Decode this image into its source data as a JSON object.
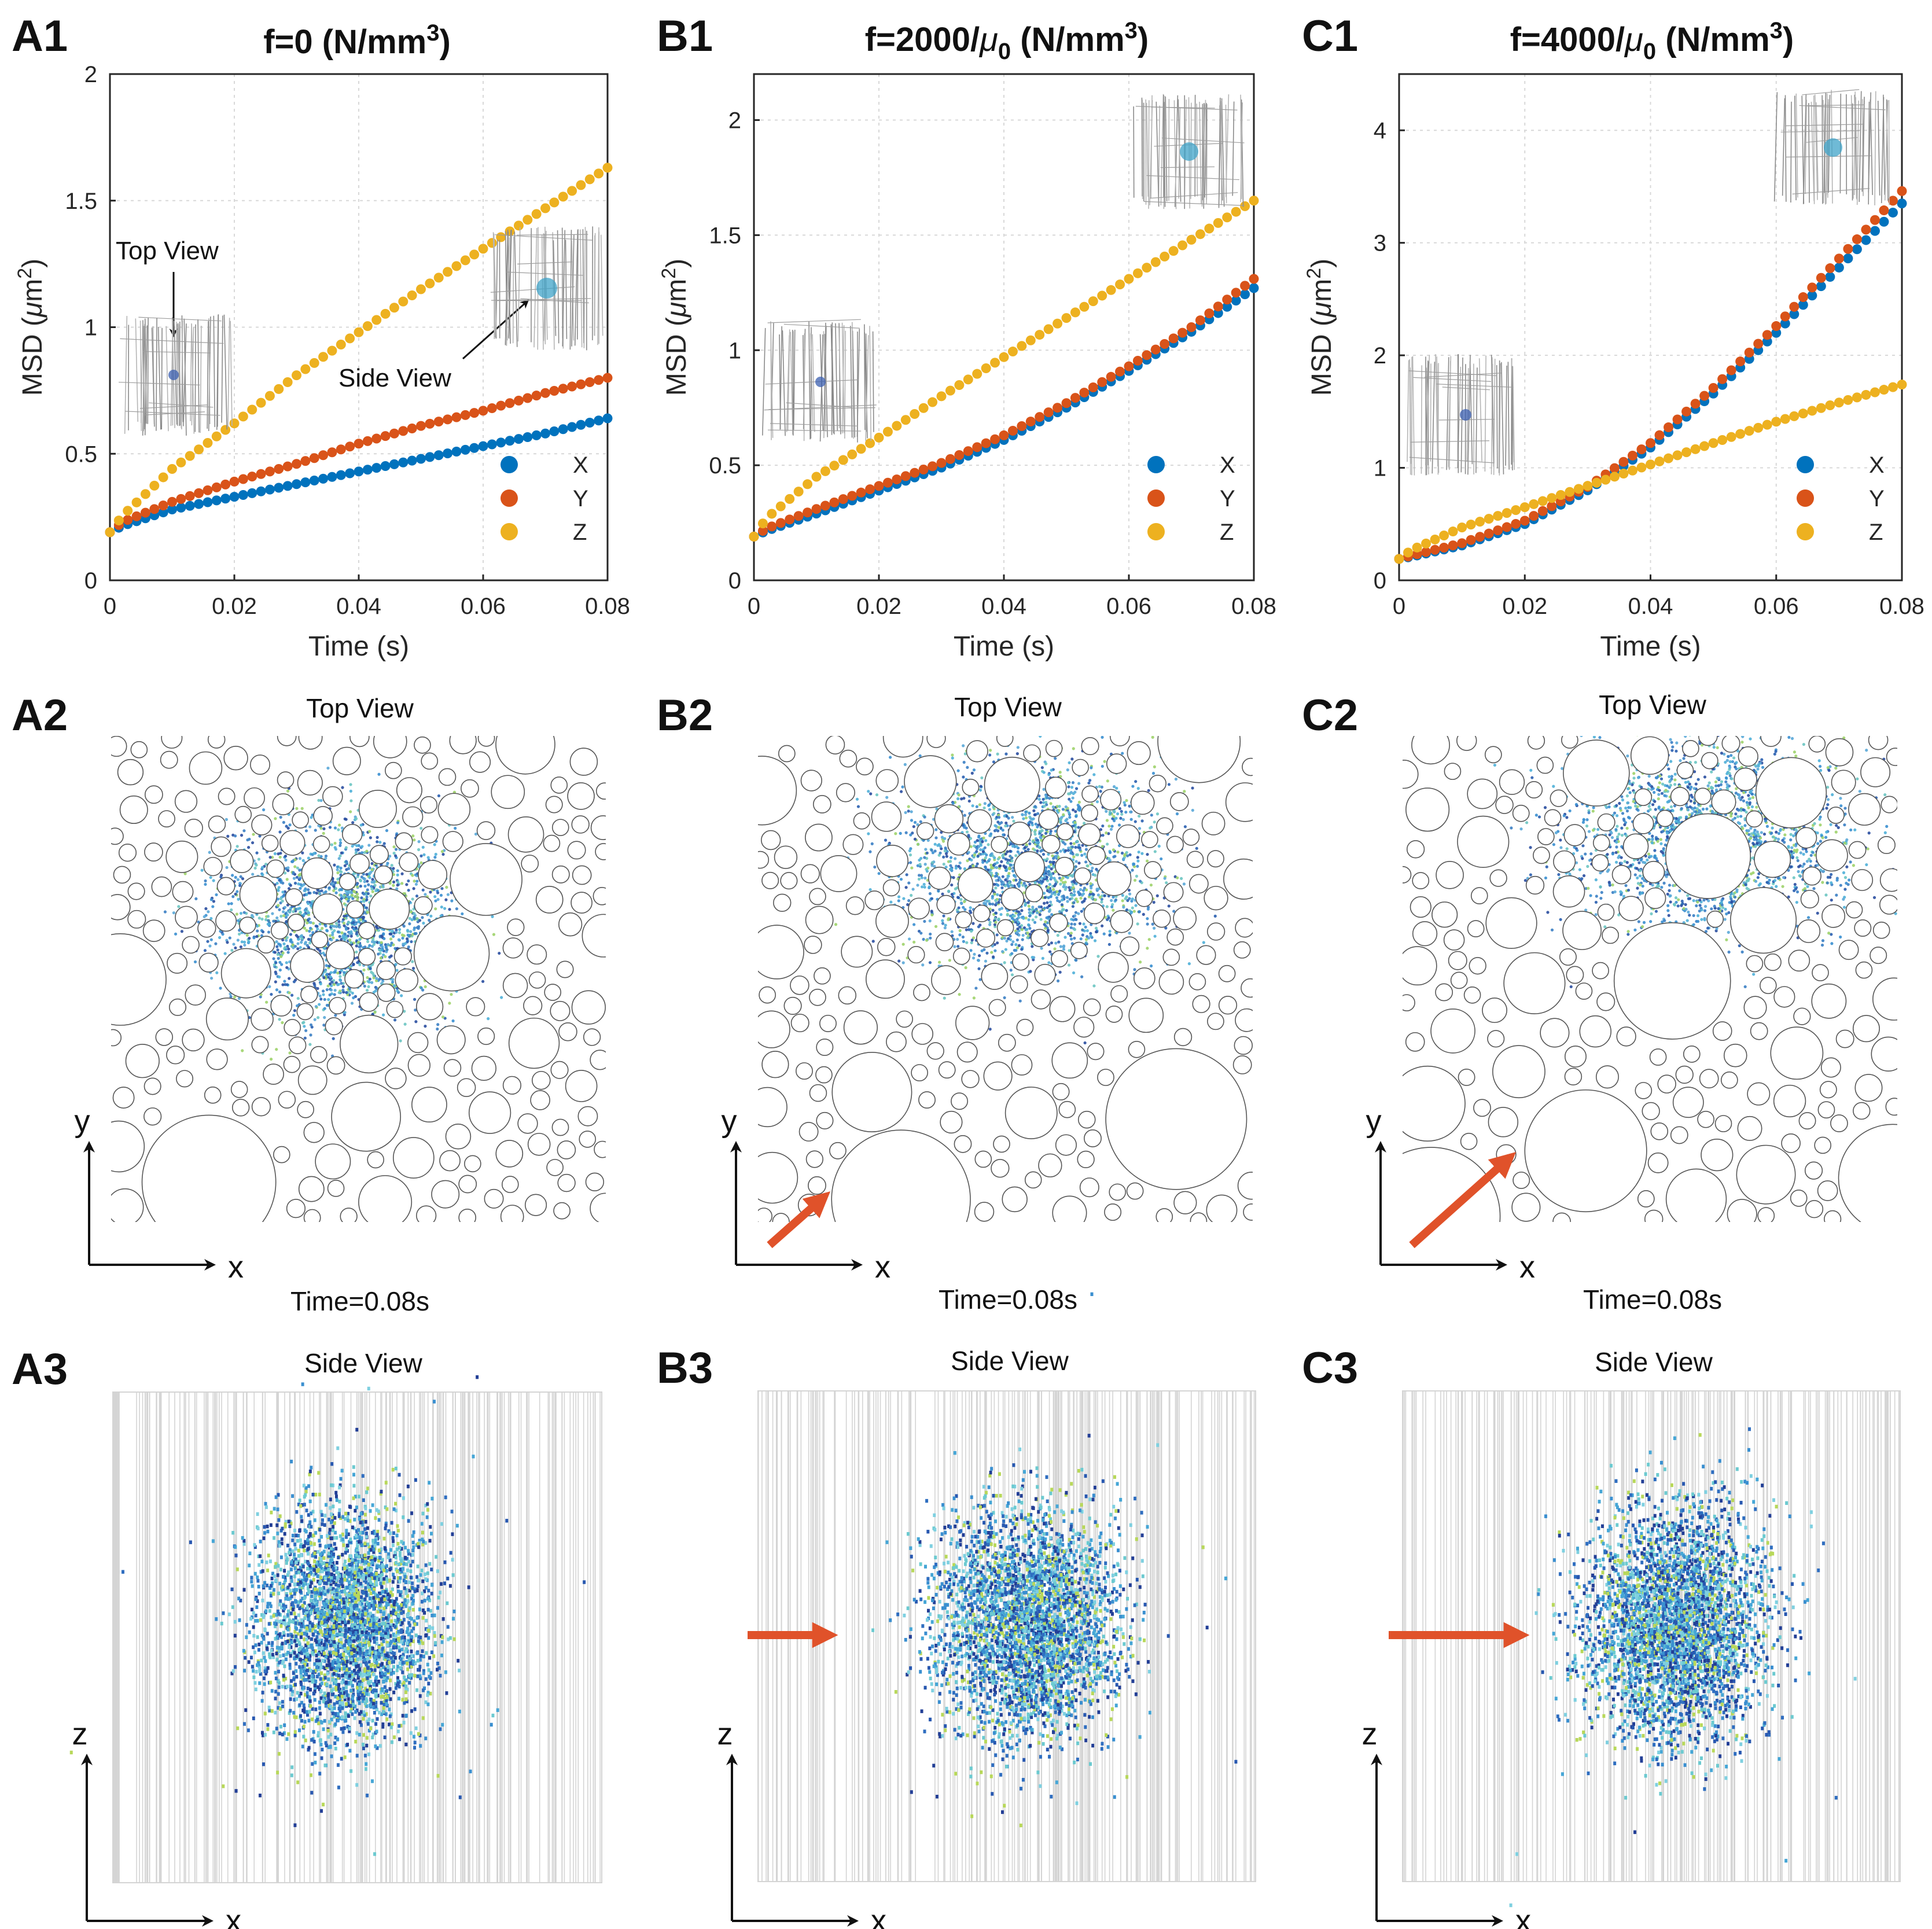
{
  "colors": {
    "x": "#0072BD",
    "y": "#D95319",
    "z": "#EDB120",
    "arrow": "#E0522A",
    "grid": "#d8d8d8",
    "cylinder": "#d4d4d4"
  },
  "row1": {
    "xlabel": "Time (s)",
    "ylabel_prefix": "MSD (",
    "ylabel_mu": "μ",
    "ylabel_unit": "m",
    "ylabel_exp": "2",
    "ylabel_suffix": ")"
  },
  "panels": [
    {
      "label": "A1",
      "title_prefix": "f=0",
      "title_mu": "",
      "title_sub": "",
      "title_unit": " (N/mm",
      "title_exp": "3",
      "title_suffix": ")",
      "annotations": {
        "top": "Top View",
        "side": "Side View"
      },
      "legend": [
        "X",
        "Y",
        "Z"
      ]
    },
    {
      "label": "B1",
      "title_prefix": "f=2000/",
      "title_mu": "μ",
      "title_sub": "0",
      "title_unit": " (N/mm",
      "title_exp": "3",
      "title_suffix": ")",
      "legend": [
        "X",
        "Y",
        "Z"
      ]
    },
    {
      "label": "C1",
      "title_prefix": "f=4000/",
      "title_mu": "μ",
      "title_sub": "0",
      "title_unit": " (N/mm",
      "title_exp": "3",
      "title_suffix": ")",
      "legend": [
        "X",
        "Y",
        "Z"
      ]
    }
  ],
  "row2": [
    {
      "label": "A2",
      "title": "Top View",
      "time": "Time=0.08s",
      "ax_x": "x",
      "ax_y": "y"
    },
    {
      "label": "B2",
      "title": "Top View",
      "time": "Time=0.08s",
      "ax_x": "x",
      "ax_y": "y"
    },
    {
      "label": "C2",
      "title": "Top View",
      "time": "Time=0.08s",
      "ax_x": "x",
      "ax_y": "y"
    }
  ],
  "row3": [
    {
      "label": "A3",
      "title": "Side View",
      "ax_x": "x",
      "ax_y": "z"
    },
    {
      "label": "B3",
      "title": "Side View",
      "ax_x": "x",
      "ax_y": "z"
    },
    {
      "label": "C3",
      "title": "Side View",
      "ax_x": "x",
      "ax_y": "z"
    }
  ],
  "chart_data": [
    {
      "type": "scatter",
      "panel": "A1",
      "title": "f=0 (N/mm^3)",
      "xlabel": "Time (s)",
      "ylabel": "MSD (μm^2)",
      "xlim": [
        0,
        0.08
      ],
      "ylim": [
        0,
        2
      ],
      "xticks": [
        0,
        0.02,
        0.04,
        0.06,
        0.08
      ],
      "xtick_labels": [
        "0",
        "0.02",
        "0.04",
        "0.06",
        "0.08"
      ],
      "yticks": [
        0,
        0.5,
        1,
        1.5,
        2
      ],
      "ytick_labels": [
        "0",
        "0.5",
        "1",
        "1.5",
        "2"
      ],
      "grid": true,
      "legend_position": "bottom-right",
      "series": [
        {
          "name": "X",
          "points": [
            [
              0,
              0.19
            ],
            [
              0.002,
              0.215
            ],
            [
              0.01,
              0.28
            ],
            [
              0.02,
              0.33
            ],
            [
              0.03,
              0.38
            ],
            [
              0.04,
              0.43
            ],
            [
              0.05,
              0.48
            ],
            [
              0.06,
              0.53
            ],
            [
              0.07,
              0.58
            ],
            [
              0.08,
              0.64
            ]
          ]
        },
        {
          "name": "Y",
          "points": [
            [
              0,
              0.19
            ],
            [
              0.002,
              0.23
            ],
            [
              0.01,
              0.31
            ],
            [
              0.02,
              0.39
            ],
            [
              0.03,
              0.46
            ],
            [
              0.04,
              0.54
            ],
            [
              0.05,
              0.61
            ],
            [
              0.06,
              0.67
            ],
            [
              0.07,
              0.74
            ],
            [
              0.08,
              0.8
            ]
          ]
        },
        {
          "name": "Z",
          "points": [
            [
              0,
              0.19
            ],
            [
              0.002,
              0.255
            ],
            [
              0.01,
              0.44
            ],
            [
              0.02,
              0.62
            ],
            [
              0.03,
              0.81
            ],
            [
              0.04,
              0.98
            ],
            [
              0.05,
              1.15
            ],
            [
              0.06,
              1.31
            ],
            [
              0.07,
              1.47
            ],
            [
              0.08,
              1.63
            ]
          ]
        }
      ]
    },
    {
      "type": "scatter",
      "panel": "B1",
      "title": "f=2000/μ0 (N/mm^3)",
      "xlabel": "Time (s)",
      "ylabel": "MSD (μm^2)",
      "xlim": [
        0,
        0.08
      ],
      "ylim": [
        0,
        2.2
      ],
      "xticks": [
        0,
        0.02,
        0.04,
        0.06,
        0.08
      ],
      "xtick_labels": [
        "0",
        "0.02",
        "0.04",
        "0.06",
        "0.08"
      ],
      "yticks": [
        0,
        0.5,
        1,
        1.5,
        2
      ],
      "ytick_labels": [
        "0",
        "0.5",
        "1",
        "1.5",
        "2"
      ],
      "grid": true,
      "legend_position": "bottom-right",
      "series": [
        {
          "name": "X",
          "points": [
            [
              0,
              0.19
            ],
            [
              0.002,
              0.215
            ],
            [
              0.01,
              0.29
            ],
            [
              0.02,
              0.39
            ],
            [
              0.03,
              0.49
            ],
            [
              0.04,
              0.61
            ],
            [
              0.05,
              0.75
            ],
            [
              0.06,
              0.91
            ],
            [
              0.07,
              1.08
            ],
            [
              0.08,
              1.27
            ]
          ]
        },
        {
          "name": "Y",
          "points": [
            [
              0,
              0.19
            ],
            [
              0.002,
              0.225
            ],
            [
              0.01,
              0.31
            ],
            [
              0.02,
              0.41
            ],
            [
              0.03,
              0.51
            ],
            [
              0.04,
              0.63
            ],
            [
              0.05,
              0.77
            ],
            [
              0.06,
              0.93
            ],
            [
              0.07,
              1.1
            ],
            [
              0.08,
              1.31
            ]
          ]
        },
        {
          "name": "Z",
          "points": [
            [
              0,
              0.19
            ],
            [
              0.002,
              0.27
            ],
            [
              0.01,
              0.45
            ],
            [
              0.02,
              0.62
            ],
            [
              0.03,
              0.8
            ],
            [
              0.04,
              0.97
            ],
            [
              0.05,
              1.14
            ],
            [
              0.06,
              1.31
            ],
            [
              0.07,
              1.48
            ],
            [
              0.08,
              1.65
            ]
          ]
        }
      ]
    },
    {
      "type": "scatter",
      "panel": "C1",
      "title": "f=4000/μ0 (N/mm^3)",
      "xlabel": "Time (s)",
      "ylabel": "MSD (μm^2)",
      "xlim": [
        0,
        0.08
      ],
      "ylim": [
        0,
        4.5
      ],
      "xticks": [
        0,
        0.02,
        0.04,
        0.06,
        0.08
      ],
      "xtick_labels": [
        "0",
        "0.02",
        "0.04",
        "0.06",
        "0.08"
      ],
      "yticks": [
        0,
        1,
        2,
        3,
        4
      ],
      "ytick_labels": [
        "0",
        "1",
        "2",
        "3",
        "4"
      ],
      "grid": true,
      "legend_position": "bottom-right",
      "series": [
        {
          "name": "X",
          "points": [
            [
              0,
              0.19
            ],
            [
              0.002,
              0.21
            ],
            [
              0.01,
              0.31
            ],
            [
              0.02,
              0.5
            ],
            [
              0.03,
              0.8
            ],
            [
              0.04,
              1.18
            ],
            [
              0.05,
              1.66
            ],
            [
              0.06,
              2.2
            ],
            [
              0.07,
              2.78
            ],
            [
              0.08,
              3.35
            ]
          ]
        },
        {
          "name": "Y",
          "points": [
            [
              0,
              0.19
            ],
            [
              0.002,
              0.22
            ],
            [
              0.01,
              0.33
            ],
            [
              0.02,
              0.53
            ],
            [
              0.03,
              0.83
            ],
            [
              0.04,
              1.22
            ],
            [
              0.05,
              1.71
            ],
            [
              0.06,
              2.26
            ],
            [
              0.07,
              2.86
            ],
            [
              0.08,
              3.46
            ]
          ]
        },
        {
          "name": "Z",
          "points": [
            [
              0,
              0.19
            ],
            [
              0.002,
              0.27
            ],
            [
              0.01,
              0.47
            ],
            [
              0.02,
              0.65
            ],
            [
              0.03,
              0.84
            ],
            [
              0.04,
              1.03
            ],
            [
              0.05,
              1.22
            ],
            [
              0.06,
              1.41
            ],
            [
              0.07,
              1.58
            ],
            [
              0.08,
              1.74
            ]
          ]
        }
      ]
    }
  ]
}
